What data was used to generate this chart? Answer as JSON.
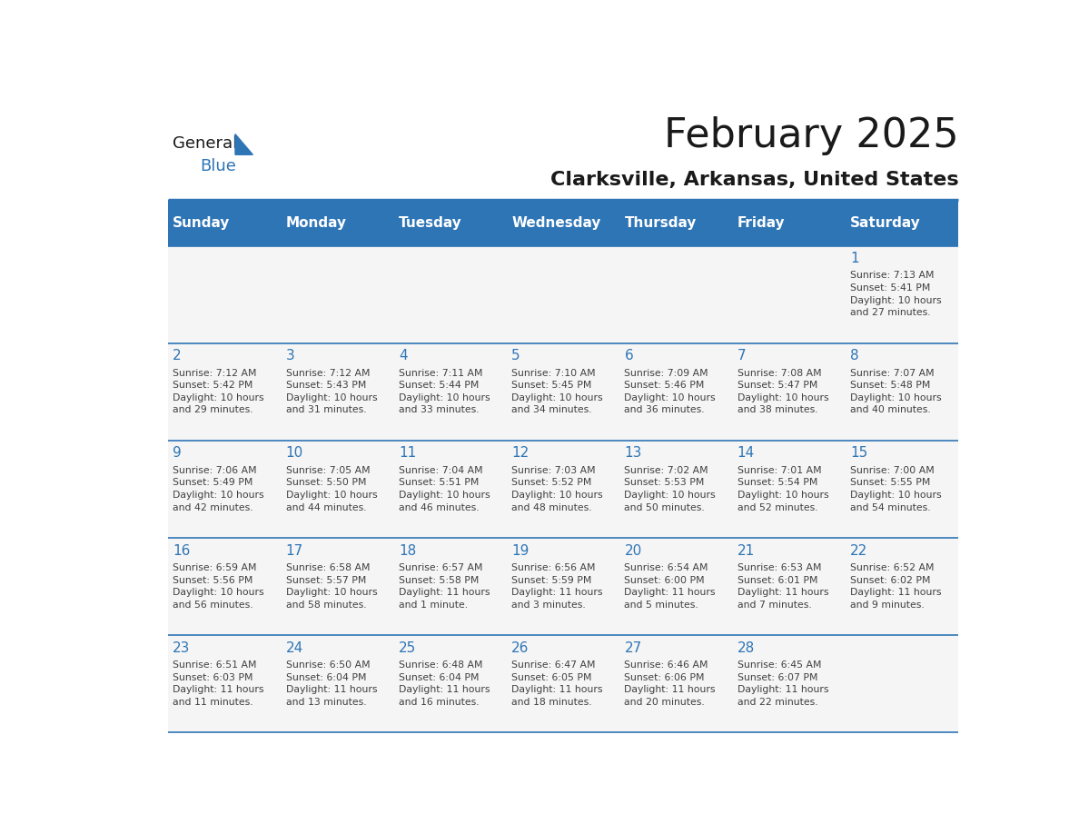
{
  "title": "February 2025",
  "subtitle": "Clarksville, Arkansas, United States",
  "header_bg": "#2e75b6",
  "header_text_color": "#ffffff",
  "day_number_color": "#2e75b6",
  "cell_text_color": "#404040",
  "cell_bg": "#f5f5f5",
  "days_of_week": [
    "Sunday",
    "Monday",
    "Tuesday",
    "Wednesday",
    "Thursday",
    "Friday",
    "Saturday"
  ],
  "calendar_data": [
    [
      null,
      null,
      null,
      null,
      null,
      null,
      {
        "day": 1,
        "sunrise": "7:13 AM",
        "sunset": "5:41 PM",
        "daylight": "10 hours\nand 27 minutes."
      }
    ],
    [
      {
        "day": 2,
        "sunrise": "7:12 AM",
        "sunset": "5:42 PM",
        "daylight": "10 hours\nand 29 minutes."
      },
      {
        "day": 3,
        "sunrise": "7:12 AM",
        "sunset": "5:43 PM",
        "daylight": "10 hours\nand 31 minutes."
      },
      {
        "day": 4,
        "sunrise": "7:11 AM",
        "sunset": "5:44 PM",
        "daylight": "10 hours\nand 33 minutes."
      },
      {
        "day": 5,
        "sunrise": "7:10 AM",
        "sunset": "5:45 PM",
        "daylight": "10 hours\nand 34 minutes."
      },
      {
        "day": 6,
        "sunrise": "7:09 AM",
        "sunset": "5:46 PM",
        "daylight": "10 hours\nand 36 minutes."
      },
      {
        "day": 7,
        "sunrise": "7:08 AM",
        "sunset": "5:47 PM",
        "daylight": "10 hours\nand 38 minutes."
      },
      {
        "day": 8,
        "sunrise": "7:07 AM",
        "sunset": "5:48 PM",
        "daylight": "10 hours\nand 40 minutes."
      }
    ],
    [
      {
        "day": 9,
        "sunrise": "7:06 AM",
        "sunset": "5:49 PM",
        "daylight": "10 hours\nand 42 minutes."
      },
      {
        "day": 10,
        "sunrise": "7:05 AM",
        "sunset": "5:50 PM",
        "daylight": "10 hours\nand 44 minutes."
      },
      {
        "day": 11,
        "sunrise": "7:04 AM",
        "sunset": "5:51 PM",
        "daylight": "10 hours\nand 46 minutes."
      },
      {
        "day": 12,
        "sunrise": "7:03 AM",
        "sunset": "5:52 PM",
        "daylight": "10 hours\nand 48 minutes."
      },
      {
        "day": 13,
        "sunrise": "7:02 AM",
        "sunset": "5:53 PM",
        "daylight": "10 hours\nand 50 minutes."
      },
      {
        "day": 14,
        "sunrise": "7:01 AM",
        "sunset": "5:54 PM",
        "daylight": "10 hours\nand 52 minutes."
      },
      {
        "day": 15,
        "sunrise": "7:00 AM",
        "sunset": "5:55 PM",
        "daylight": "10 hours\nand 54 minutes."
      }
    ],
    [
      {
        "day": 16,
        "sunrise": "6:59 AM",
        "sunset": "5:56 PM",
        "daylight": "10 hours\nand 56 minutes."
      },
      {
        "day": 17,
        "sunrise": "6:58 AM",
        "sunset": "5:57 PM",
        "daylight": "10 hours\nand 58 minutes."
      },
      {
        "day": 18,
        "sunrise": "6:57 AM",
        "sunset": "5:58 PM",
        "daylight": "11 hours\nand 1 minute."
      },
      {
        "day": 19,
        "sunrise": "6:56 AM",
        "sunset": "5:59 PM",
        "daylight": "11 hours\nand 3 minutes."
      },
      {
        "day": 20,
        "sunrise": "6:54 AM",
        "sunset": "6:00 PM",
        "daylight": "11 hours\nand 5 minutes."
      },
      {
        "day": 21,
        "sunrise": "6:53 AM",
        "sunset": "6:01 PM",
        "daylight": "11 hours\nand 7 minutes."
      },
      {
        "day": 22,
        "sunrise": "6:52 AM",
        "sunset": "6:02 PM",
        "daylight": "11 hours\nand 9 minutes."
      }
    ],
    [
      {
        "day": 23,
        "sunrise": "6:51 AM",
        "sunset": "6:03 PM",
        "daylight": "11 hours\nand 11 minutes."
      },
      {
        "day": 24,
        "sunrise": "6:50 AM",
        "sunset": "6:04 PM",
        "daylight": "11 hours\nand 13 minutes."
      },
      {
        "day": 25,
        "sunrise": "6:48 AM",
        "sunset": "6:04 PM",
        "daylight": "11 hours\nand 16 minutes."
      },
      {
        "day": 26,
        "sunrise": "6:47 AM",
        "sunset": "6:05 PM",
        "daylight": "11 hours\nand 18 minutes."
      },
      {
        "day": 27,
        "sunrise": "6:46 AM",
        "sunset": "6:06 PM",
        "daylight": "11 hours\nand 20 minutes."
      },
      {
        "day": 28,
        "sunrise": "6:45 AM",
        "sunset": "6:07 PM",
        "daylight": "11 hours\nand 22 minutes."
      },
      null
    ]
  ],
  "logo_color_general": "#1a1a1a",
  "logo_color_blue": "#2e75b6",
  "logo_triangle_color": "#2e75b6",
  "divider_color": "#2e75b6",
  "title_fontsize": 32,
  "subtitle_fontsize": 16,
  "header_fontsize": 11,
  "day_num_fontsize": 11,
  "cell_text_fontsize": 7.8
}
